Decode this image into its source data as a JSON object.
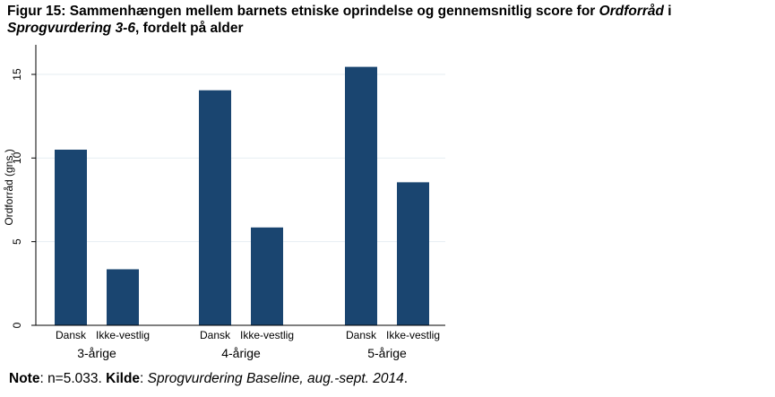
{
  "figure": {
    "title_part1": "Figur 15: Sammenhængen mellem barnets etniske oprindelse og gennemsnitlig score for ",
    "title_italic1": "Ordforråd",
    "title_part2": " i ",
    "title_italic2": "Sprogvurdering 3-6",
    "title_part3": ", fordelt på alder",
    "note_label": "Note",
    "note_text": ": n=5.033. ",
    "source_label": "Kilde",
    "source_sep": ": ",
    "source_text": "Sprogvurdering Baseline, aug.-sept. 2014",
    "source_end": "."
  },
  "chart_data": {
    "type": "bar",
    "title": "",
    "ylabel": "Ordforråd (gns.)",
    "xlabel": "",
    "ylim": [
      0,
      16.5
    ],
    "yticks": [
      0,
      5,
      10,
      15
    ],
    "grid": true,
    "bar_color": "#1a4570",
    "groups": [
      {
        "label": "3-årige",
        "categories": [
          "Dansk",
          "Ikke-vestlig"
        ],
        "values": [
          10.5,
          3.35
        ]
      },
      {
        "label": "4-årige",
        "categories": [
          "Dansk",
          "Ikke-vestlig"
        ],
        "values": [
          14.05,
          5.85
        ]
      },
      {
        "label": "5-årige",
        "categories": [
          "Dansk",
          "Ikke-vestlig"
        ],
        "values": [
          15.45,
          8.55
        ]
      }
    ]
  }
}
